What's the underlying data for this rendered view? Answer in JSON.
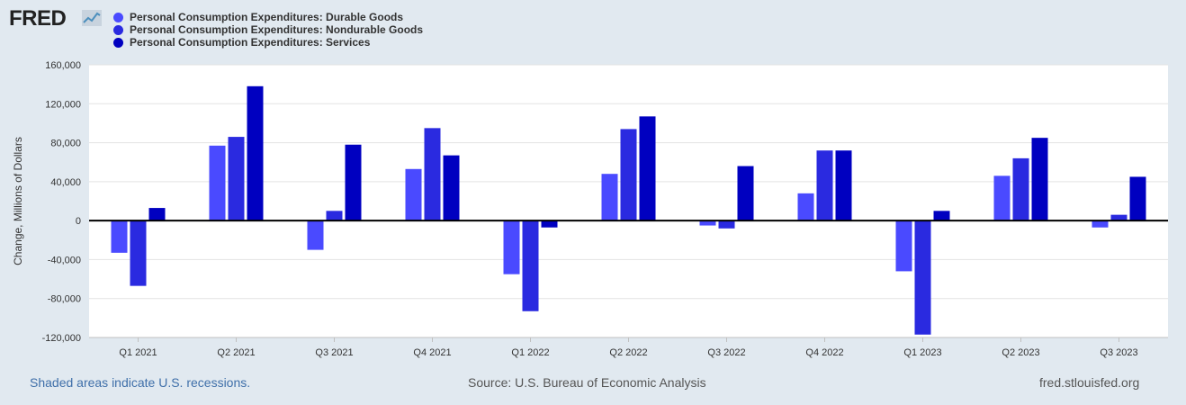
{
  "logo": {
    "text": "FRED"
  },
  "legend": [
    {
      "label": "Personal Consumption Expenditures: Durable Goods",
      "color": "#4a4aff"
    },
    {
      "label": "Personal Consumption Expenditures: Nondurable Goods",
      "color": "#2a2ae0"
    },
    {
      "label": "Personal Consumption Expenditures: Services",
      "color": "#0000c0"
    }
  ],
  "footer": {
    "recessions": "Shaded areas indicate U.S. recessions.",
    "source": "Source: U.S. Bureau of Economic Analysis",
    "site": "fred.stlouisfed.org"
  },
  "chart_data": {
    "type": "bar",
    "title": "",
    "xlabel": "",
    "ylabel": "Change, Millions of Dollars",
    "ylim": [
      -120000,
      160000
    ],
    "yticks": [
      160000,
      120000,
      80000,
      40000,
      0,
      -40000,
      -80000,
      -120000
    ],
    "ytick_labels": [
      "160,000",
      "120,000",
      "80,000",
      "40,000",
      "0",
      "-40,000",
      "-80,000",
      "-120,000"
    ],
    "categories": [
      "Q1 2021",
      "Q2 2021",
      "Q3 2021",
      "Q4 2021",
      "Q1 2022",
      "Q2 2022",
      "Q3 2022",
      "Q4 2022",
      "Q1 2023",
      "Q2 2023",
      "Q3 2023"
    ],
    "series": [
      {
        "name": "Personal Consumption Expenditures: Durable Goods",
        "color": "#4a4aff",
        "values": [
          -33000,
          77000,
          -30000,
          53000,
          -55000,
          48000,
          -5000,
          28000,
          -52000,
          46000,
          -7000
        ]
      },
      {
        "name": "Personal Consumption Expenditures: Nondurable Goods",
        "color": "#2a2ae0",
        "values": [
          -67000,
          86000,
          10000,
          95000,
          -93000,
          94000,
          -8000,
          72000,
          -117000,
          64000,
          6000
        ]
      },
      {
        "name": "Personal Consumption Expenditures: Services",
        "color": "#0000c0",
        "values": [
          13000,
          138000,
          78000,
          67000,
          -7000,
          107000,
          56000,
          72000,
          10000,
          85000,
          45000
        ]
      }
    ],
    "grid": true
  }
}
